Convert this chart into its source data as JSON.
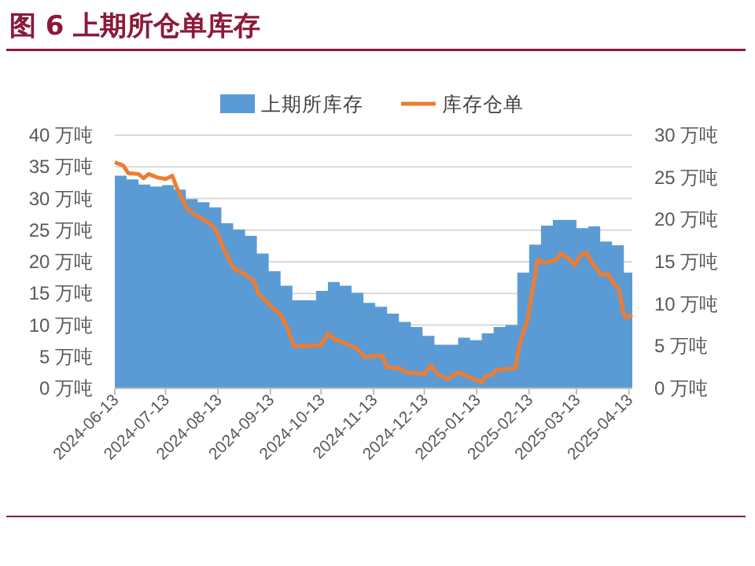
{
  "chart_data": {
    "type": "area",
    "title": "图 6  上期所仓单库存",
    "xlim": [
      "2024-06-13",
      "2025-04-15"
    ],
    "xticks": [
      "2024-06-13",
      "2024-07-13",
      "2024-08-13",
      "2024-09-13",
      "2024-10-13",
      "2024-11-13",
      "2024-12-13",
      "2025-01-13",
      "2025-02-13",
      "2025-03-13",
      "2025-04-13"
    ],
    "ylim": [
      0,
      40
    ],
    "yticks": [
      {
        "value": 0,
        "label": "0 万吨"
      },
      {
        "value": 5,
        "label": "5 万吨"
      },
      {
        "value": 10,
        "label": "10 万吨"
      },
      {
        "value": 15,
        "label": "15 万吨"
      },
      {
        "value": 20,
        "label": "20 万吨"
      },
      {
        "value": 25,
        "label": "25 万吨"
      },
      {
        "value": 30,
        "label": "30 万吨"
      },
      {
        "value": 35,
        "label": "35 万吨"
      },
      {
        "value": 40,
        "label": "40 万吨"
      }
    ],
    "y2lim": [
      0,
      30
    ],
    "y2ticks": [
      {
        "value": 0,
        "label": "0 万吨"
      },
      {
        "value": 5,
        "label": "5 万吨"
      },
      {
        "value": 10,
        "label": "10 万吨"
      },
      {
        "value": 15,
        "label": "15 万吨"
      },
      {
        "value": 20,
        "label": "20 万吨"
      },
      {
        "value": 25,
        "label": "25 万吨"
      },
      {
        "value": 30,
        "label": "30 万吨"
      }
    ],
    "grid": "y",
    "legend": "top",
    "series": [
      {
        "name": "上期所库存",
        "color": "#5b9bd5",
        "x": [
          "2024-06-13",
          "2024-06-20",
          "2024-06-27",
          "2024-07-04",
          "2024-07-11",
          "2024-07-18",
          "2024-07-25",
          "2024-08-01",
          "2024-08-08",
          "2024-08-15",
          "2024-08-22",
          "2024-08-29",
          "2024-09-05",
          "2024-09-12",
          "2024-09-19",
          "2024-09-26",
          "2024-10-03",
          "2024-10-10",
          "2024-10-17",
          "2024-10-24",
          "2024-10-31",
          "2024-11-07",
          "2024-11-14",
          "2024-11-21",
          "2024-11-28",
          "2024-12-05",
          "2024-12-12",
          "2024-12-19",
          "2024-12-26",
          "2025-01-02",
          "2025-01-09",
          "2025-01-16",
          "2025-01-23",
          "2025-01-30",
          "2025-02-06",
          "2025-02-13",
          "2025-02-20",
          "2025-02-27",
          "2025-03-06",
          "2025-03-13",
          "2025-03-20",
          "2025-03-27",
          "2025-04-03",
          "2025-04-10",
          "2025-04-15"
        ],
        "values": [
          33.6,
          33.0,
          32.2,
          31.9,
          32.1,
          31.4,
          29.9,
          29.4,
          28.6,
          26.1,
          25.1,
          24.1,
          21.3,
          18.5,
          16.2,
          13.9,
          13.9,
          15.4,
          16.8,
          16.2,
          15.1,
          13.5,
          12.9,
          11.8,
          10.5,
          9.7,
          8.3,
          6.9,
          6.9,
          8.0,
          7.6,
          8.7,
          9.7,
          10.0,
          18.3,
          22.7,
          25.7,
          26.6,
          26.6,
          25.3,
          25.6,
          23.2,
          22.6,
          18.3,
          18.3
        ]
      },
      {
        "name": "库存仓单",
        "type": "line",
        "axis": "y2",
        "color": "#ed7d31",
        "x": [
          "2024-06-13",
          "2024-06-18",
          "2024-06-21",
          "2024-06-27",
          "2024-06-30",
          "2024-07-03",
          "2024-07-08",
          "2024-07-13",
          "2024-07-17",
          "2024-07-20",
          "2024-07-26",
          "2024-07-31",
          "2024-08-08",
          "2024-08-12",
          "2024-08-16",
          "2024-08-22",
          "2024-08-28",
          "2024-09-03",
          "2024-09-06",
          "2024-09-13",
          "2024-09-19",
          "2024-09-23",
          "2024-09-27",
          "2024-10-03",
          "2024-10-09",
          "2024-10-13",
          "2024-10-17",
          "2024-10-21",
          "2024-10-28",
          "2024-11-03",
          "2024-11-08",
          "2024-11-18",
          "2024-11-21",
          "2024-11-28",
          "2024-12-02",
          "2024-12-13",
          "2024-12-17",
          "2024-12-21",
          "2024-12-27",
          "2025-01-02",
          "2025-01-10",
          "2025-01-16",
          "2025-01-18",
          "2025-01-22",
          "2025-01-25",
          "2025-02-05",
          "2025-02-07",
          "2025-02-12",
          "2025-02-18",
          "2025-02-22",
          "2025-03-01",
          "2025-03-04",
          "2025-03-08",
          "2025-03-12",
          "2025-03-15",
          "2025-03-19",
          "2025-03-22",
          "2025-03-28",
          "2025-04-01",
          "2025-04-04",
          "2025-04-07",
          "2025-04-10",
          "2025-04-11",
          "2025-04-15"
        ],
        "values": [
          26.8,
          26.4,
          25.5,
          25.4,
          24.9,
          25.4,
          25.0,
          24.8,
          25.2,
          23.6,
          21.2,
          20.5,
          19.6,
          18.7,
          16.7,
          14.3,
          13.6,
          12.8,
          11.2,
          9.8,
          8.7,
          7.2,
          5.0,
          5.0,
          5.1,
          5.1,
          6.5,
          5.8,
          5.3,
          4.7,
          3.7,
          3.9,
          2.5,
          2.4,
          1.9,
          1.7,
          2.7,
          1.6,
          1.1,
          1.9,
          1.2,
          0.7,
          1.4,
          1.6,
          2.2,
          2.4,
          5.0,
          8.1,
          15.2,
          14.9,
          15.2,
          16.0,
          15.4,
          14.6,
          15.7,
          16.1,
          14.9,
          13.4,
          13.5,
          12.4,
          11.8,
          8.7,
          8.4,
          8.7
        ]
      }
    ]
  }
}
